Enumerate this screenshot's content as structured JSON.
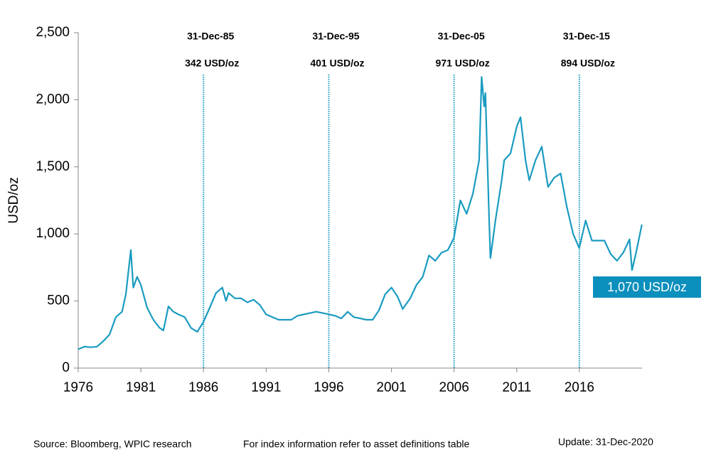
{
  "chart_data": {
    "type": "line",
    "ylabel": "USD/oz",
    "x": [
      1976,
      1976.5,
      1977,
      1977.5,
      1978,
      1978.5,
      1979,
      1979.5,
      1979.8,
      1980.2,
      1980.4,
      1980.7,
      1981,
      1981.5,
      1982,
      1982.5,
      1982.8,
      1983.2,
      1983.6,
      1984,
      1984.5,
      1985,
      1985.5,
      1985.99,
      1986.5,
      1987,
      1987.5,
      1987.8,
      1988,
      1988.5,
      1989,
      1989.5,
      1990,
      1990.5,
      1991,
      1991.5,
      1992,
      1992.5,
      1993,
      1993.5,
      1994,
      1994.5,
      1995,
      1995.99,
      1996.5,
      1997,
      1997.5,
      1998,
      1998.5,
      1999,
      1999.5,
      2000,
      2000.5,
      2001,
      2001.5,
      2001.9,
      2002.5,
      2003,
      2003.5,
      2004,
      2004.5,
      2005,
      2005.5,
      2005.99,
      2006.5,
      2007,
      2007.5,
      2008,
      2008.2,
      2008.4,
      2008.5,
      2008.8,
      2008.9,
      2009.3,
      2009.8,
      2010,
      2010.5,
      2011,
      2011.3,
      2011.7,
      2012,
      2012.5,
      2013,
      2013.5,
      2014,
      2014.5,
      2015,
      2015.5,
      2015.99,
      2016.5,
      2017,
      2017.5,
      2018,
      2018.5,
      2019,
      2019.5,
      2020,
      2020.2,
      2020.5,
      2020.99
    ],
    "series": [
      {
        "color": "#1a9bc0",
        "values": [
          140,
          160,
          155,
          160,
          200,
          250,
          380,
          420,
          550,
          880,
          600,
          680,
          620,
          450,
          360,
          300,
          280,
          460,
          420,
          400,
          380,
          300,
          270,
          342,
          450,
          560,
          600,
          500,
          560,
          520,
          520,
          490,
          510,
          470,
          400,
          380,
          360,
          360,
          360,
          390,
          400,
          410,
          420,
          401,
          390,
          370,
          420,
          380,
          370,
          360,
          360,
          430,
          550,
          600,
          530,
          440,
          520,
          620,
          680,
          840,
          800,
          860,
          880,
          971,
          1250,
          1150,
          1300,
          1550,
          2170,
          1950,
          2050,
          1100,
          820,
          1100,
          1400,
          1550,
          1600,
          1800,
          1870,
          1550,
          1400,
          1550,
          1650,
          1350,
          1420,
          1450,
          1200,
          1000,
          894,
          1100,
          950,
          950,
          950,
          850,
          800,
          860,
          960,
          730,
          850,
          1070
        ]
      }
    ],
    "xlim": [
      1976,
      2021
    ],
    "xticks": [
      1976,
      1981,
      1986,
      1991,
      1996,
      2001,
      2006,
      2011,
      2016
    ],
    "ylim": [
      0,
      2500
    ],
    "yticks": [
      0,
      500,
      {
        "value": 1000,
        "label": "1,000"
      },
      {
        "value": 1500,
        "label": "1,500"
      },
      {
        "value": 2000,
        "label": "2,000"
      },
      {
        "value": 2500,
        "label": "2,500"
      }
    ],
    "markers": [
      {
        "x": 1986,
        "date_label": "31-Dec-85",
        "price_label": "342 USD/oz"
      },
      {
        "x": 1996,
        "date_label": "31-Dec-95",
        "price_label": "401 USD/oz"
      },
      {
        "x": 2006,
        "date_label": "31-Dec-05",
        "price_label": "971 USD/oz"
      },
      {
        "x": 2016,
        "date_label": "31-Dec-15",
        "price_label": "894 USD/oz"
      }
    ],
    "last_label": "1,070 USD/oz",
    "last_label_color": "#0b8fbd",
    "source": "Source: Bloomberg, WPIC research",
    "note": "For index information refer to asset definitions table",
    "update": "Update: 31-Dec-2020"
  }
}
